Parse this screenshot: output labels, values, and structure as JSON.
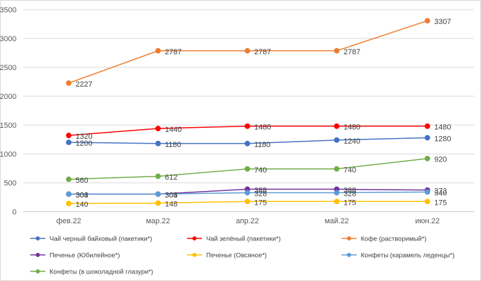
{
  "chart_data": {
    "type": "line",
    "title": "",
    "xlabel": "",
    "ylabel": "",
    "categories": [
      "фев.22",
      "мар.22",
      "апр.22",
      "май.22",
      "июн.22"
    ],
    "ylim": [
      0,
      3500
    ],
    "yticks": [
      0,
      500,
      1000,
      1500,
      2000,
      2500,
      3000,
      3500
    ],
    "grid": true,
    "legend_position": "bottom",
    "series": [
      {
        "name": "Чай черный байховый (пакетики*)",
        "color": "#4472C4",
        "values": [
          1200,
          1180,
          1180,
          1240,
          1280
        ]
      },
      {
        "name": "Чай зелёный (пакетики*)",
        "color": "#FF0000",
        "values": [
          1320,
          1440,
          1480,
          1480,
          1480
        ]
      },
      {
        "name": "Кофе (растворимый*)",
        "color": "#ED7D31",
        "values": [
          2227,
          2787,
          2787,
          2787,
          3307
        ]
      },
      {
        "name": "Печенье (Юбилейное*)",
        "color": "#7030A0",
        "values": [
          303,
          303,
          388,
          388,
          373
        ]
      },
      {
        "name": "Печенье (Овсяное*)",
        "color": "#FFC000",
        "values": [
          140,
          148,
          175,
          175,
          175
        ]
      },
      {
        "name": "Конфеты (карамель леденцы*)",
        "color": "#5B9BD5",
        "values": [
          304,
          304,
          328,
          328,
          340
        ]
      },
      {
        "name": "Конфеты (в шоколадной глазури*)",
        "color": "#70AD47",
        "values": [
          560,
          612,
          740,
          740,
          920
        ]
      }
    ]
  }
}
